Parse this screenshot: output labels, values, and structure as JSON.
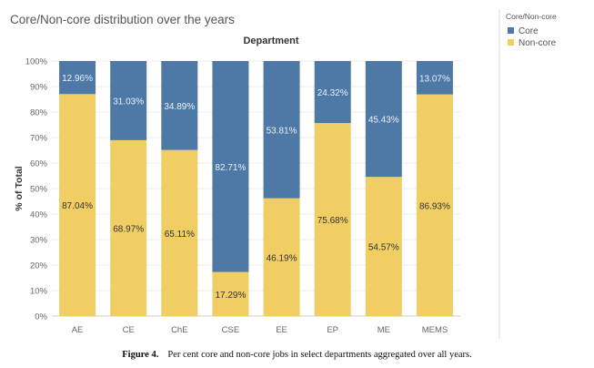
{
  "chart_data": {
    "type": "bar",
    "stacked": true,
    "title": "Core/Non-core distribution over the years",
    "header": "Department",
    "ylabel": "% of Total",
    "ylim": [
      0,
      100
    ],
    "ytick_labels": [
      "0%",
      "10%",
      "20%",
      "30%",
      "40%",
      "50%",
      "60%",
      "70%",
      "80%",
      "90%",
      "100%"
    ],
    "categories": [
      "AE",
      "CE",
      "ChE",
      "CSE",
      "EE",
      "EP",
      "ME",
      "MEMS"
    ],
    "series": [
      {
        "name": "Non-core",
        "values": [
          87.04,
          68.97,
          65.11,
          17.29,
          46.19,
          75.68,
          54.57,
          86.93
        ],
        "labels": [
          "87.04%",
          "68.97%",
          "65.11%",
          "17.29%",
          "46.19%",
          "75.68%",
          "54.57%",
          "86.93%"
        ]
      },
      {
        "name": "Core",
        "values": [
          12.96,
          31.03,
          34.89,
          82.71,
          53.81,
          24.32,
          45.43,
          13.07
        ],
        "labels": [
          "12.96%",
          "31.03%",
          "34.89%",
          "82.71%",
          "53.81%",
          "24.32%",
          "45.43%",
          "13.07%"
        ]
      }
    ],
    "legend": {
      "title": "Core/Non-core",
      "placement": "right",
      "entries": [
        "Core",
        "Non-core"
      ]
    },
    "colors": {
      "Core": "#4e79a7",
      "Non-core": "#f1ce63"
    },
    "grid": true
  },
  "caption": {
    "label": "Figure 4.",
    "text": "Per cent core and non-core jobs in select departments aggregated over all years."
  }
}
